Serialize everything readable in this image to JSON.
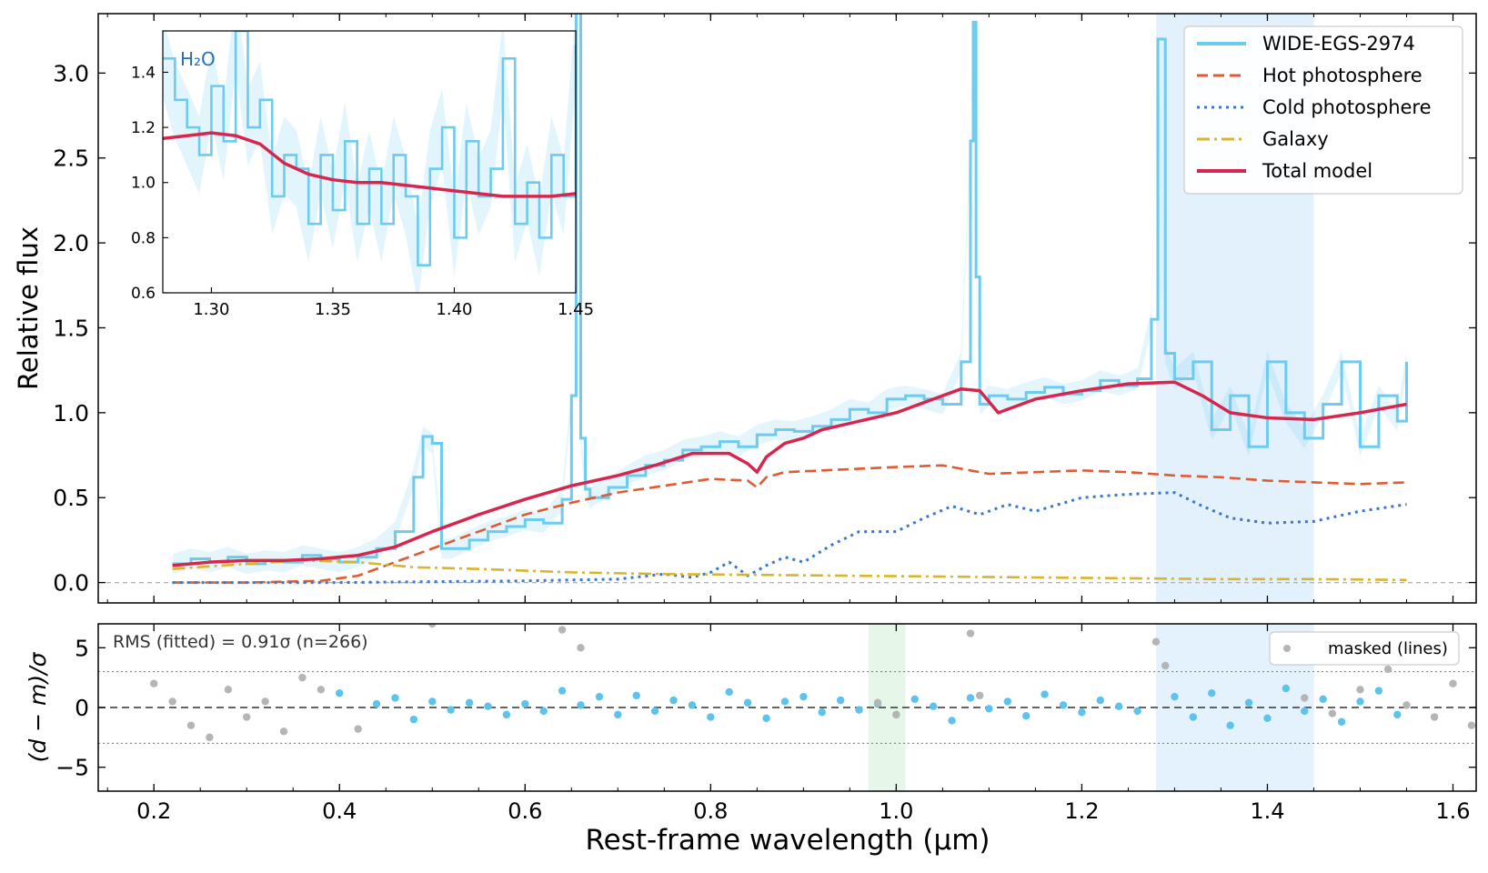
{
  "figure": {
    "xlabel": "Rest-frame wavelength (μm)",
    "ylabel_main": "Relative flux",
    "ylabel_resid": "(d − m)/σ",
    "rms_text": "RMS (fitted) = 0.91σ  (n=266)",
    "inset_label": "H₂O"
  },
  "chart_data": [
    {
      "panel": "main",
      "type": "line",
      "xlim": [
        0.14,
        1.625
      ],
      "ylim": [
        -0.12,
        3.35
      ],
      "xticks": [
        0.2,
        0.4,
        0.6,
        0.8,
        1.0,
        1.2,
        1.4,
        1.6
      ],
      "xtick_labels": [
        "0.2",
        "0.4",
        "0.6",
        "0.8",
        "1.0",
        "1.2",
        "1.4",
        "1.6"
      ],
      "yticks": [
        0.0,
        0.5,
        1.0,
        1.5,
        2.0,
        2.5,
        3.0
      ],
      "ytick_labels": [
        "0.0",
        "0.5",
        "1.0",
        "1.5",
        "2.0",
        "2.5",
        "3.0"
      ],
      "shaded_band": [
        1.28,
        1.45
      ],
      "legend_position": "top-right",
      "legend": [
        {
          "label": "WIDE-EGS-2974",
          "style": "solid",
          "color": "#6ccbee"
        },
        {
          "label": "Hot photosphere",
          "style": "dashed",
          "color": "#e05a33"
        },
        {
          "label": "Cold photosphere",
          "style": "dotted",
          "color": "#3b78cc"
        },
        {
          "label": "Galaxy",
          "style": "dashdot",
          "color": "#d8b52f"
        },
        {
          "label": "Total model",
          "style": "solid",
          "color": "#d7264d"
        }
      ],
      "series": [
        {
          "name": "WIDE-EGS-2974",
          "color": "#6ccbee",
          "x": [
            0.22,
            0.24,
            0.26,
            0.28,
            0.3,
            0.32,
            0.34,
            0.36,
            0.38,
            0.4,
            0.42,
            0.44,
            0.46,
            0.48,
            0.49,
            0.5,
            0.51,
            0.52,
            0.54,
            0.56,
            0.58,
            0.6,
            0.62,
            0.64,
            0.65,
            0.655,
            0.66,
            0.665,
            0.67,
            0.69,
            0.71,
            0.73,
            0.75,
            0.77,
            0.79,
            0.81,
            0.83,
            0.85,
            0.87,
            0.89,
            0.91,
            0.93,
            0.95,
            0.97,
            0.99,
            1.01,
            1.03,
            1.05,
            1.07,
            1.08,
            1.083,
            1.086,
            1.09,
            1.1,
            1.12,
            1.14,
            1.16,
            1.18,
            1.2,
            1.22,
            1.24,
            1.26,
            1.275,
            1.282,
            1.29,
            1.3,
            1.32,
            1.34,
            1.36,
            1.38,
            1.4,
            1.42,
            1.44,
            1.46,
            1.48,
            1.5,
            1.52,
            1.54,
            1.55
          ],
          "y": [
            0.11,
            0.14,
            0.12,
            0.15,
            0.11,
            0.13,
            0.12,
            0.16,
            0.14,
            0.12,
            0.15,
            0.2,
            0.3,
            0.62,
            0.86,
            0.82,
            0.2,
            0.2,
            0.25,
            0.3,
            0.33,
            0.37,
            0.35,
            0.49,
            1.1,
            3.4,
            0.85,
            0.55,
            0.5,
            0.56,
            0.63,
            0.69,
            0.72,
            0.78,
            0.8,
            0.83,
            0.8,
            0.87,
            0.9,
            0.89,
            0.92,
            0.96,
            1.02,
            1.0,
            1.08,
            1.1,
            1.08,
            1.05,
            1.3,
            2.6,
            3.3,
            1.8,
            1.05,
            1.1,
            1.08,
            1.12,
            1.15,
            1.11,
            1.13,
            1.19,
            1.16,
            1.2,
            1.55,
            3.2,
            1.35,
            1.2,
            1.3,
            0.9,
            1.1,
            0.8,
            1.3,
            1.0,
            0.85,
            1.05,
            1.3,
            0.8,
            1.1,
            0.95,
            1.3
          ]
        },
        {
          "name": "Hot photosphere",
          "color": "#e05a33",
          "x": [
            0.22,
            0.3,
            0.38,
            0.42,
            0.46,
            0.5,
            0.55,
            0.6,
            0.65,
            0.7,
            0.75,
            0.8,
            0.84,
            0.85,
            0.86,
            0.88,
            0.92,
            0.96,
            1.0,
            1.05,
            1.1,
            1.15,
            1.2,
            1.25,
            1.3,
            1.35,
            1.4,
            1.45,
            1.5,
            1.55
          ],
          "y": [
            0.0,
            0.0,
            0.01,
            0.04,
            0.12,
            0.2,
            0.3,
            0.4,
            0.47,
            0.53,
            0.57,
            0.61,
            0.6,
            0.56,
            0.62,
            0.65,
            0.66,
            0.67,
            0.68,
            0.69,
            0.64,
            0.65,
            0.66,
            0.65,
            0.63,
            0.62,
            0.6,
            0.59,
            0.58,
            0.59
          ]
        },
        {
          "name": "Cold photosphere",
          "color": "#3b78cc",
          "x": [
            0.22,
            0.4,
            0.6,
            0.7,
            0.75,
            0.78,
            0.8,
            0.82,
            0.84,
            0.86,
            0.88,
            0.9,
            0.93,
            0.96,
            1.0,
            1.03,
            1.06,
            1.09,
            1.12,
            1.15,
            1.2,
            1.25,
            1.3,
            1.33,
            1.36,
            1.4,
            1.45,
            1.5,
            1.55
          ],
          "y": [
            0.0,
            0.0,
            0.01,
            0.02,
            0.05,
            0.03,
            0.06,
            0.12,
            0.04,
            0.1,
            0.15,
            0.12,
            0.22,
            0.3,
            0.3,
            0.38,
            0.45,
            0.4,
            0.46,
            0.42,
            0.5,
            0.52,
            0.53,
            0.45,
            0.38,
            0.35,
            0.36,
            0.42,
            0.46
          ]
        },
        {
          "name": "Galaxy",
          "color": "#d8b52f",
          "x": [
            0.22,
            0.3,
            0.36,
            0.42,
            0.48,
            0.55,
            0.65,
            0.75,
            0.85,
            0.95,
            1.05,
            1.15,
            1.25,
            1.35,
            1.45,
            1.55
          ],
          "y": [
            0.08,
            0.11,
            0.13,
            0.12,
            0.09,
            0.08,
            0.06,
            0.05,
            0.045,
            0.04,
            0.035,
            0.03,
            0.025,
            0.02,
            0.02,
            0.015
          ]
        },
        {
          "name": "Total model",
          "color": "#d7264d",
          "x": [
            0.22,
            0.26,
            0.3,
            0.34,
            0.38,
            0.42,
            0.46,
            0.5,
            0.55,
            0.6,
            0.65,
            0.7,
            0.74,
            0.78,
            0.82,
            0.84,
            0.85,
            0.86,
            0.88,
            0.9,
            0.92,
            0.96,
            1.0,
            1.04,
            1.07,
            1.09,
            1.11,
            1.15,
            1.2,
            1.25,
            1.3,
            1.33,
            1.36,
            1.4,
            1.45,
            1.5,
            1.55
          ],
          "y": [
            0.1,
            0.12,
            0.13,
            0.13,
            0.14,
            0.16,
            0.21,
            0.3,
            0.4,
            0.49,
            0.57,
            0.63,
            0.69,
            0.76,
            0.76,
            0.7,
            0.65,
            0.74,
            0.82,
            0.85,
            0.9,
            0.95,
            1.0,
            1.08,
            1.14,
            1.13,
            1.0,
            1.08,
            1.13,
            1.17,
            1.18,
            1.1,
            1.0,
            0.97,
            0.96,
            1.0,
            1.05
          ]
        }
      ]
    },
    {
      "panel": "inset",
      "type": "line",
      "xlim": [
        1.28,
        1.45
      ],
      "ylim": [
        0.6,
        1.55
      ],
      "xticks": [
        1.3,
        1.35,
        1.4,
        1.45
      ],
      "xtick_labels": [
        "1.30",
        "1.35",
        "1.40",
        "1.45"
      ],
      "yticks": [
        0.6,
        0.8,
        1.0,
        1.2,
        1.4
      ],
      "ytick_labels": [
        "0.6",
        "0.8",
        "1.0",
        "1.2",
        "1.4"
      ],
      "series": [
        {
          "name": "WIDE-EGS-2974",
          "color": "#6ccbee",
          "x": [
            1.28,
            1.285,
            1.29,
            1.295,
            1.3,
            1.305,
            1.31,
            1.315,
            1.32,
            1.325,
            1.33,
            1.335,
            1.34,
            1.345,
            1.35,
            1.355,
            1.36,
            1.365,
            1.37,
            1.375,
            1.38,
            1.385,
            1.39,
            1.395,
            1.4,
            1.405,
            1.41,
            1.415,
            1.42,
            1.425,
            1.43,
            1.435,
            1.44,
            1.445,
            1.45
          ],
          "y": [
            1.45,
            1.3,
            1.2,
            1.1,
            1.35,
            1.15,
            1.55,
            1.2,
            1.3,
            0.95,
            1.1,
            1.05,
            0.85,
            1.1,
            0.9,
            1.15,
            0.85,
            1.05,
            0.85,
            1.1,
            0.95,
            0.7,
            1.05,
            1.2,
            0.8,
            1.15,
            0.95,
            1.05,
            1.45,
            0.85,
            1.0,
            0.8,
            1.1,
            0.95,
            1.5
          ]
        },
        {
          "name": "Total model",
          "color": "#d7264d",
          "x": [
            1.28,
            1.29,
            1.3,
            1.31,
            1.32,
            1.33,
            1.34,
            1.35,
            1.36,
            1.37,
            1.38,
            1.39,
            1.4,
            1.41,
            1.42,
            1.43,
            1.44,
            1.45
          ],
          "y": [
            1.16,
            1.17,
            1.18,
            1.17,
            1.14,
            1.07,
            1.03,
            1.01,
            1.0,
            1.0,
            0.99,
            0.98,
            0.97,
            0.96,
            0.95,
            0.95,
            0.95,
            0.96
          ]
        }
      ]
    },
    {
      "panel": "residuals",
      "type": "scatter",
      "xlim": [
        0.14,
        1.625
      ],
      "ylim": [
        -7,
        7
      ],
      "yticks": [
        -5,
        0,
        5
      ],
      "ytick_labels": [
        "−5",
        "0",
        "5"
      ],
      "reference_lines": [
        3,
        -3
      ],
      "shaded_bands": [
        {
          "range": [
            0.97,
            1.01
          ],
          "color": "#e6f6e9"
        },
        {
          "range": [
            1.28,
            1.45
          ],
          "color": "#e3f2fc"
        }
      ],
      "legend_position": "top-right",
      "legend": [
        {
          "label": "masked (lines)",
          "color": "#b5b5b5"
        }
      ],
      "series": [
        {
          "name": "fitted",
          "color": "#5bc3ec",
          "x": [
            0.4,
            0.44,
            0.46,
            0.48,
            0.5,
            0.52,
            0.54,
            0.56,
            0.58,
            0.6,
            0.62,
            0.64,
            0.66,
            0.68,
            0.7,
            0.72,
            0.74,
            0.76,
            0.78,
            0.8,
            0.82,
            0.84,
            0.86,
            0.88,
            0.9,
            0.92,
            0.94,
            0.96,
            0.98,
            1.0,
            1.02,
            1.04,
            1.06,
            1.08,
            1.1,
            1.12,
            1.14,
            1.16,
            1.18,
            1.2,
            1.22,
            1.24,
            1.26,
            1.3,
            1.32,
            1.34,
            1.36,
            1.38,
            1.4,
            1.42,
            1.44,
            1.46,
            1.48,
            1.5,
            1.52,
            1.54
          ],
          "y": [
            1.2,
            0.3,
            0.8,
            -1.0,
            0.5,
            -0.2,
            0.4,
            0.1,
            -0.6,
            0.3,
            -0.3,
            1.4,
            0.2,
            0.9,
            -0.6,
            1.0,
            -0.3,
            0.6,
            0.2,
            -0.8,
            1.3,
            0.4,
            -0.9,
            0.5,
            0.9,
            -0.4,
            0.6,
            -0.2,
            0.3,
            -0.6,
            0.7,
            0.1,
            -1.1,
            0.8,
            -0.1,
            0.5,
            -0.7,
            1.1,
            0.2,
            -0.4,
            0.6,
            0.1,
            -0.3,
            0.9,
            -0.8,
            1.2,
            -1.5,
            0.4,
            -0.9,
            1.6,
            -0.3,
            0.7,
            -1.2,
            0.5,
            1.4,
            -0.6
          ]
        },
        {
          "name": "masked (lines)",
          "color": "#b5b5b5",
          "x": [
            0.2,
            0.22,
            0.24,
            0.26,
            0.28,
            0.3,
            0.32,
            0.34,
            0.36,
            0.38,
            0.42,
            0.5,
            0.64,
            0.66,
            0.98,
            1.0,
            1.08,
            1.09,
            1.28,
            1.29,
            1.44,
            1.47,
            1.5,
            1.53,
            1.55,
            1.58,
            1.6,
            1.62
          ],
          "y": [
            2.0,
            0.5,
            -1.5,
            -2.5,
            1.5,
            -0.8,
            0.5,
            -2.0,
            2.5,
            1.5,
            -1.8,
            7.0,
            6.5,
            5.0,
            0.4,
            -0.6,
            6.2,
            1.0,
            5.5,
            3.5,
            0.8,
            -0.5,
            1.5,
            3.2,
            0.2,
            -0.8,
            2.0,
            -1.5
          ]
        }
      ]
    }
  ]
}
